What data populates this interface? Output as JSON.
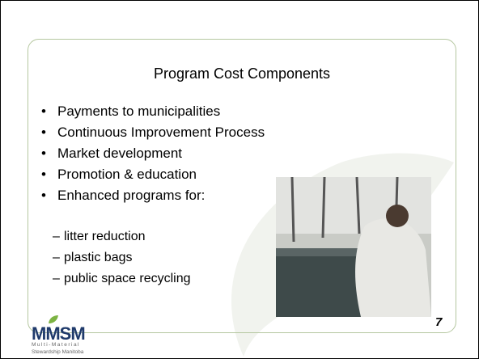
{
  "slide": {
    "title": "Program Cost Components",
    "bullets": [
      "Payments to municipalities",
      "Continuous Improvement Process",
      "Market development",
      "Promotion & education",
      "Enhanced programs for:"
    ],
    "sub_bullets": [
      "litter reduction",
      "plastic bags",
      "public space recycling"
    ],
    "page_number": "7",
    "logo": {
      "name": "MMSM",
      "tagline_1": "Multi-Material",
      "tagline_2": "Stewardship Manitoba"
    }
  }
}
